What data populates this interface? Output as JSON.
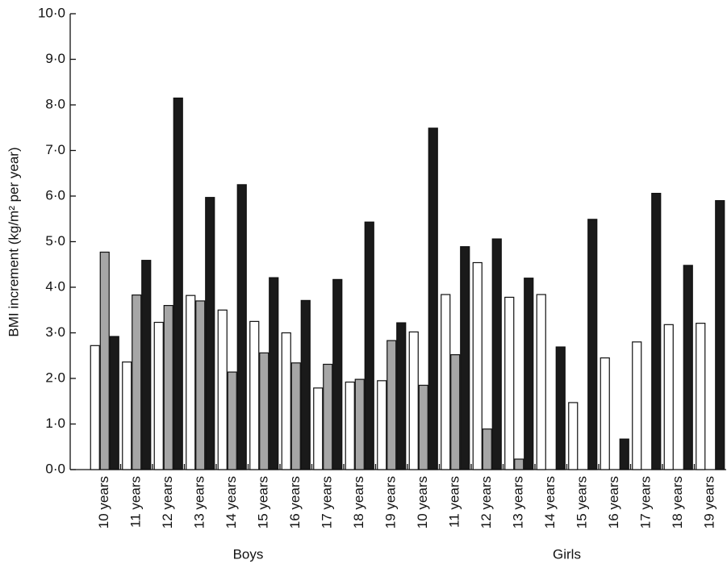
{
  "chart_data": {
    "type": "bar",
    "y_label": "BMI increment (kg/m² per year)",
    "groups": [
      "Boys",
      "Girls"
    ],
    "categories": [
      "10 years",
      "11 years",
      "12 years",
      "13 years",
      "14 years",
      "15 years",
      "16 years",
      "17 years",
      "18 years",
      "19 years",
      "10 years",
      "11 years",
      "12 years",
      "13 years",
      "14 years",
      "15 years",
      "16 years",
      "17 years",
      "18 years",
      "19 years"
    ],
    "series": [
      {
        "color": "#ffffff",
        "values": [
          2.72,
          2.36,
          3.23,
          3.82,
          3.5,
          3.25,
          3.0,
          1.79,
          1.92,
          1.95,
          3.02,
          3.84,
          4.54,
          3.78,
          3.84,
          1.47,
          2.45,
          2.8,
          3.18,
          3.21
        ]
      },
      {
        "color": "#a6a6a6",
        "values": [
          4.77,
          3.83,
          3.6,
          3.7,
          2.14,
          2.56,
          2.34,
          2.31,
          1.98,
          2.83,
          1.85,
          2.52,
          0.89,
          0.23,
          null,
          null,
          null,
          null,
          null,
          null
        ]
      },
      {
        "color": "#1a1a1a",
        "values": [
          2.92,
          4.59,
          8.15,
          5.97,
          6.25,
          4.21,
          3.71,
          4.17,
          5.43,
          3.22,
          7.49,
          4.89,
          5.06,
          4.2,
          2.69,
          5.49,
          0.67,
          6.06,
          4.48,
          5.9
        ]
      }
    ],
    "ylim": [
      0,
      10
    ],
    "yticks": [
      {
        "value": 0,
        "label": "0·0"
      },
      {
        "value": 1,
        "label": "1·0"
      },
      {
        "value": 2,
        "label": "2·0"
      },
      {
        "value": 3,
        "label": "3·0"
      },
      {
        "value": 4,
        "label": "4·0"
      },
      {
        "value": 5,
        "label": "5·0"
      },
      {
        "value": 6,
        "label": "6·0"
      },
      {
        "value": 7,
        "label": "7·0"
      },
      {
        "value": 8,
        "label": "8·0"
      },
      {
        "value": 9,
        "label": "9·0"
      },
      {
        "value": 10,
        "label": "10·0"
      }
    ],
    "grid": false
  }
}
